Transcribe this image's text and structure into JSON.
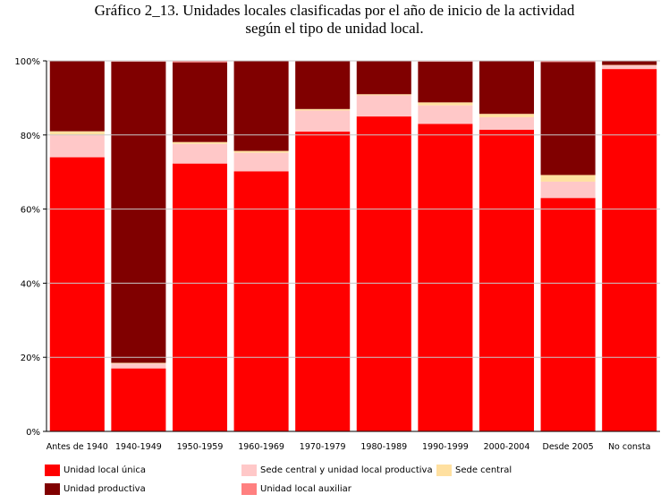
{
  "title_line1": "Gráfico 2_13. Unidades locales clasificadas por el año de inicio de la actividad",
  "title_line2": "según el tipo de unidad local.",
  "chart_data": {
    "type": "bar",
    "stacked": true,
    "percent": true,
    "categories": [
      "Antes de 1940",
      "1940-1949",
      "1950-1959",
      "1960-1969",
      "1970-1979",
      "1980-1989",
      "1990-1999",
      "2000-2004",
      "Desde 2005",
      "No consta"
    ],
    "y_ticks": [
      "0%",
      "20%",
      "40%",
      "60%",
      "80%",
      "100%"
    ],
    "ylim": [
      0,
      100
    ],
    "grid": true,
    "legend_position": "bottom",
    "series": [
      {
        "name": "Unidad local única",
        "color": "#ff0000",
        "values": [
          74,
          17,
          72.3,
          70.2,
          80.9,
          85,
          83,
          81.4,
          63,
          97.8
        ]
      },
      {
        "name": "Sede central y unidad local productiva",
        "color": "#ffc8c8",
        "values": [
          6,
          1.3,
          5.3,
          5,
          5.7,
          5.7,
          5,
          3.4,
          4.4,
          1
        ]
      },
      {
        "name": "Sede central",
        "color": "#ffe0a0",
        "values": [
          1,
          0.2,
          0.5,
          0.5,
          0.4,
          0.3,
          0.8,
          0.9,
          1.8,
          0.1
        ]
      },
      {
        "name": "Unidad productiva",
        "color": "#800000",
        "values": [
          19,
          81.3,
          21.5,
          24.3,
          13,
          9,
          11,
          14.2,
          30.5,
          1.1
        ]
      },
      {
        "name": "Unidad local auxiliar",
        "color": "#ff8080",
        "values": [
          0,
          0.2,
          0.4,
          0,
          0,
          0,
          0.2,
          0.1,
          0.3,
          0
        ]
      }
    ]
  }
}
